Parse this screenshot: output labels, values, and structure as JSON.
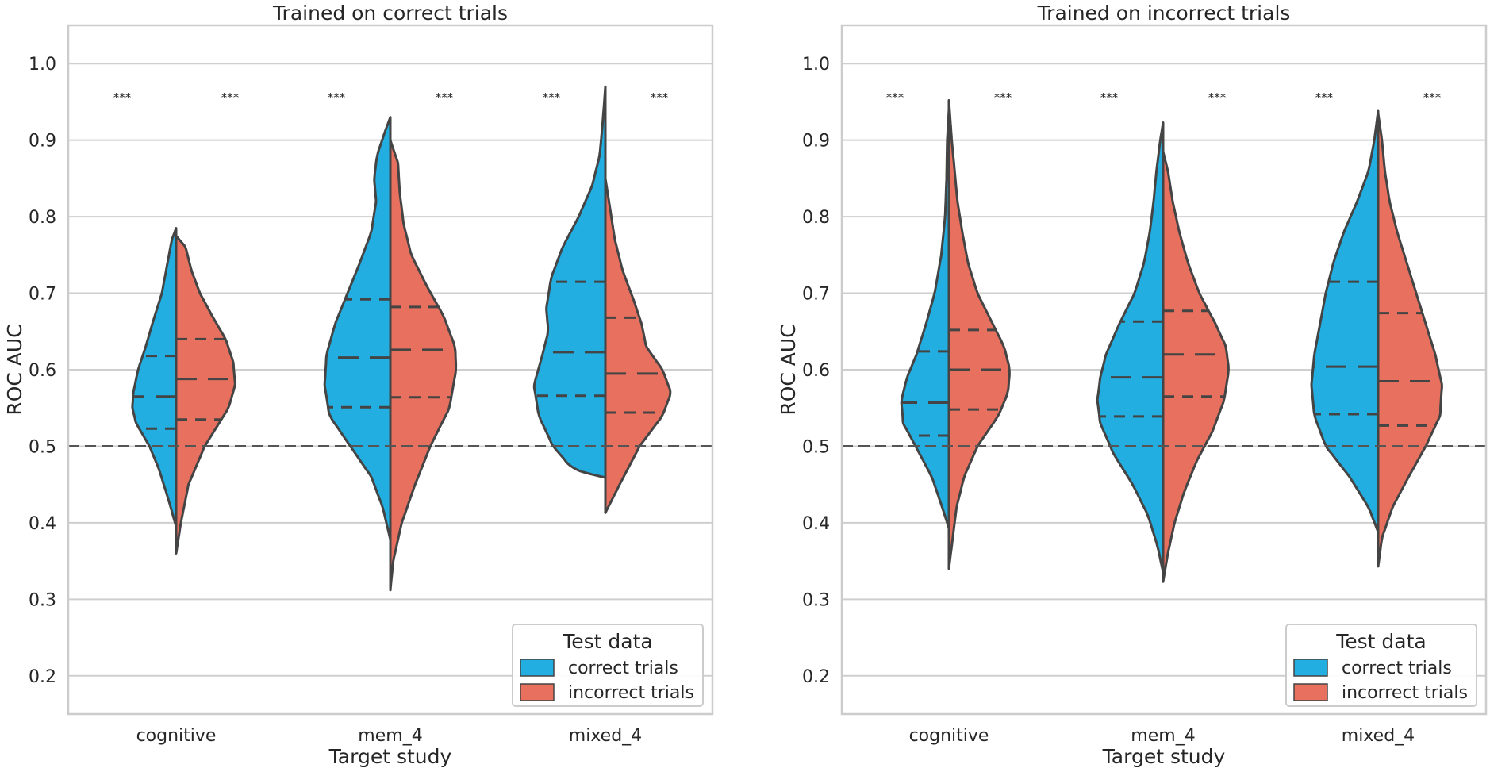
{
  "colors": {
    "correct": "#22aee0",
    "incorrect": "#e8705f",
    "outline": "#444444",
    "grid": "#cfcfcf",
    "reference": "#555555"
  },
  "chart_data": [
    {
      "type": "violin",
      "title": "Trained on correct trials",
      "xlabel": "Target study",
      "ylabel": "ROC AUC",
      "ylim": [
        0.15,
        1.05
      ],
      "yticks": [
        "0.2",
        "0.3",
        "0.4",
        "0.5",
        "0.6",
        "0.7",
        "0.8",
        "0.9",
        "1.0"
      ],
      "categories": [
        "cognitive",
        "mem_4",
        "mixed_4"
      ],
      "reference_line": 0.5,
      "grid": true,
      "legend": {
        "title": "Test data",
        "placement": "lower-right",
        "entries": [
          "correct trials",
          "incorrect trials"
        ]
      },
      "groups": [
        {
          "category": "cognitive",
          "correct": {
            "min": 0.395,
            "max": 0.785,
            "q1": 0.523,
            "median": 0.565,
            "q3": 0.618,
            "signif": "***",
            "shape": [
              [
                0.395,
                0.0
              ],
              [
                0.43,
                0.08
              ],
              [
                0.47,
                0.18
              ],
              [
                0.5,
                0.28
              ],
              [
                0.53,
                0.42
              ],
              [
                0.55,
                0.46
              ],
              [
                0.57,
                0.45
              ],
              [
                0.6,
                0.4
              ],
              [
                0.63,
                0.32
              ],
              [
                0.66,
                0.25
              ],
              [
                0.7,
                0.15
              ],
              [
                0.74,
                0.09
              ],
              [
                0.77,
                0.045
              ],
              [
                0.785,
                0.0
              ]
            ]
          },
          "incorrect": {
            "min": 0.36,
            "max": 0.775,
            "q1": 0.535,
            "median": 0.588,
            "q3": 0.64,
            "signif": "***",
            "shape": [
              [
                0.36,
                0.0
              ],
              [
                0.4,
                0.05
              ],
              [
                0.45,
                0.13
              ],
              [
                0.5,
                0.3
              ],
              [
                0.55,
                0.55
              ],
              [
                0.58,
                0.62
              ],
              [
                0.61,
                0.6
              ],
              [
                0.64,
                0.52
              ],
              [
                0.67,
                0.38
              ],
              [
                0.7,
                0.25
              ],
              [
                0.73,
                0.16
              ],
              [
                0.76,
                0.1
              ],
              [
                0.775,
                0.0
              ]
            ]
          }
        },
        {
          "category": "mem_4",
          "correct": {
            "min": 0.378,
            "max": 0.93,
            "q1": 0.551,
            "median": 0.616,
            "q3": 0.692,
            "signif": "***",
            "shape": [
              [
                0.378,
                0.0
              ],
              [
                0.42,
                0.08
              ],
              [
                0.46,
                0.2
              ],
              [
                0.5,
                0.42
              ],
              [
                0.54,
                0.64
              ],
              [
                0.58,
                0.69
              ],
              [
                0.62,
                0.67
              ],
              [
                0.66,
                0.58
              ],
              [
                0.7,
                0.45
              ],
              [
                0.74,
                0.32
              ],
              [
                0.78,
                0.2
              ],
              [
                0.82,
                0.15
              ],
              [
                0.85,
                0.17
              ],
              [
                0.88,
                0.14
              ],
              [
                0.91,
                0.06
              ],
              [
                0.93,
                0.0
              ]
            ]
          },
          "incorrect": {
            "min": 0.312,
            "max": 0.9,
            "q1": 0.564,
            "median": 0.626,
            "q3": 0.682,
            "signif": "***",
            "shape": [
              [
                0.312,
                0.0
              ],
              [
                0.35,
                0.03
              ],
              [
                0.4,
                0.12
              ],
              [
                0.45,
                0.26
              ],
              [
                0.5,
                0.42
              ],
              [
                0.55,
                0.62
              ],
              [
                0.6,
                0.69
              ],
              [
                0.63,
                0.68
              ],
              [
                0.67,
                0.56
              ],
              [
                0.71,
                0.38
              ],
              [
                0.75,
                0.22
              ],
              [
                0.79,
                0.14
              ],
              [
                0.83,
                0.1
              ],
              [
                0.87,
                0.08
              ],
              [
                0.9,
                0.0
              ]
            ]
          }
        },
        {
          "category": "mixed_4",
          "correct": {
            "min": 0.459,
            "max": 0.97,
            "q1": 0.566,
            "median": 0.623,
            "q3": 0.715,
            "signif": "***",
            "shape": [
              [
                0.459,
                0.0
              ],
              [
                0.47,
                0.34
              ],
              [
                0.5,
                0.55
              ],
              [
                0.54,
                0.7
              ],
              [
                0.58,
                0.75
              ],
              [
                0.62,
                0.66
              ],
              [
                0.65,
                0.6
              ],
              [
                0.68,
                0.62
              ],
              [
                0.72,
                0.57
              ],
              [
                0.76,
                0.45
              ],
              [
                0.8,
                0.28
              ],
              [
                0.84,
                0.14
              ],
              [
                0.88,
                0.06
              ],
              [
                0.92,
                0.03
              ],
              [
                0.97,
                0.0
              ]
            ]
          },
          "incorrect": {
            "min": 0.413,
            "max": 0.85,
            "q1": 0.544,
            "median": 0.595,
            "q3": 0.668,
            "signif": "***",
            "shape": [
              [
                0.413,
                0.0
              ],
              [
                0.45,
                0.15
              ],
              [
                0.5,
                0.36
              ],
              [
                0.54,
                0.6
              ],
              [
                0.57,
                0.69
              ],
              [
                0.6,
                0.6
              ],
              [
                0.63,
                0.43
              ],
              [
                0.66,
                0.38
              ],
              [
                0.69,
                0.3
              ],
              [
                0.73,
                0.18
              ],
              [
                0.77,
                0.1
              ],
              [
                0.81,
                0.05
              ],
              [
                0.85,
                0.0
              ]
            ]
          }
        }
      ]
    },
    {
      "type": "violin",
      "title": "Trained on incorrect trials",
      "xlabel": "Target study",
      "ylabel": "ROC AUC",
      "ylim": [
        0.15,
        1.05
      ],
      "yticks": [
        "0.2",
        "0.3",
        "0.4",
        "0.5",
        "0.6",
        "0.7",
        "0.8",
        "0.9",
        "1.0"
      ],
      "categories": [
        "cognitive",
        "mem_4",
        "mixed_4"
      ],
      "reference_line": 0.5,
      "grid": true,
      "legend": {
        "title": "Test data",
        "placement": "lower-right",
        "entries": [
          "correct trials",
          "incorrect trials"
        ]
      },
      "groups": [
        {
          "category": "cognitive",
          "correct": {
            "min": 0.393,
            "max": 0.94,
            "q1": 0.514,
            "median": 0.557,
            "q3": 0.624,
            "signif": "***",
            "shape": [
              [
                0.393,
                0.0
              ],
              [
                0.42,
                0.07
              ],
              [
                0.46,
                0.18
              ],
              [
                0.5,
                0.35
              ],
              [
                0.53,
                0.48
              ],
              [
                0.56,
                0.5
              ],
              [
                0.59,
                0.44
              ],
              [
                0.62,
                0.34
              ],
              [
                0.66,
                0.24
              ],
              [
                0.7,
                0.15
              ],
              [
                0.75,
                0.08
              ],
              [
                0.8,
                0.04
              ],
              [
                0.85,
                0.025
              ],
              [
                0.9,
                0.018
              ],
              [
                0.94,
                0.0
              ]
            ]
          },
          "incorrect": {
            "min": 0.34,
            "max": 0.952,
            "q1": 0.548,
            "median": 0.6,
            "q3": 0.652,
            "signif": "***",
            "shape": [
              [
                0.34,
                0.0
              ],
              [
                0.38,
                0.04
              ],
              [
                0.42,
                0.08
              ],
              [
                0.46,
                0.16
              ],
              [
                0.5,
                0.3
              ],
              [
                0.54,
                0.52
              ],
              [
                0.57,
                0.62
              ],
              [
                0.6,
                0.64
              ],
              [
                0.63,
                0.58
              ],
              [
                0.66,
                0.46
              ],
              [
                0.7,
                0.3
              ],
              [
                0.74,
                0.2
              ],
              [
                0.78,
                0.14
              ],
              [
                0.82,
                0.09
              ],
              [
                0.86,
                0.06
              ],
              [
                0.9,
                0.03
              ],
              [
                0.952,
                0.0
              ]
            ]
          }
        },
        {
          "category": "mem_4",
          "correct": {
            "min": 0.335,
            "max": 0.923,
            "q1": 0.539,
            "median": 0.59,
            "q3": 0.663,
            "signif": "***",
            "shape": [
              [
                0.335,
                0.0
              ],
              [
                0.37,
                0.06
              ],
              [
                0.41,
                0.16
              ],
              [
                0.45,
                0.32
              ],
              [
                0.49,
                0.52
              ],
              [
                0.53,
                0.66
              ],
              [
                0.56,
                0.69
              ],
              [
                0.59,
                0.66
              ],
              [
                0.62,
                0.6
              ],
              [
                0.66,
                0.46
              ],
              [
                0.7,
                0.3
              ],
              [
                0.74,
                0.2
              ],
              [
                0.78,
                0.14
              ],
              [
                0.82,
                0.1
              ],
              [
                0.86,
                0.07
              ],
              [
                0.9,
                0.03
              ],
              [
                0.923,
                0.0
              ]
            ]
          },
          "incorrect": {
            "min": 0.323,
            "max": 0.885,
            "q1": 0.565,
            "median": 0.62,
            "q3": 0.677,
            "signif": "***",
            "shape": [
              [
                0.323,
                0.0
              ],
              [
                0.36,
                0.05
              ],
              [
                0.4,
                0.12
              ],
              [
                0.44,
                0.22
              ],
              [
                0.48,
                0.35
              ],
              [
                0.52,
                0.52
              ],
              [
                0.56,
                0.64
              ],
              [
                0.6,
                0.69
              ],
              [
                0.63,
                0.66
              ],
              [
                0.66,
                0.55
              ],
              [
                0.7,
                0.38
              ],
              [
                0.74,
                0.26
              ],
              [
                0.78,
                0.17
              ],
              [
                0.82,
                0.1
              ],
              [
                0.86,
                0.05
              ],
              [
                0.885,
                0.0
              ]
            ]
          }
        },
        {
          "category": "mixed_4",
          "correct": {
            "min": 0.388,
            "max": 0.938,
            "q1": 0.542,
            "median": 0.604,
            "q3": 0.715,
            "signif": "***",
            "shape": [
              [
                0.388,
                0.0
              ],
              [
                0.42,
                0.1
              ],
              [
                0.46,
                0.3
              ],
              [
                0.5,
                0.55
              ],
              [
                0.54,
                0.67
              ],
              [
                0.58,
                0.7
              ],
              [
                0.62,
                0.67
              ],
              [
                0.66,
                0.61
              ],
              [
                0.7,
                0.55
              ],
              [
                0.74,
                0.47
              ],
              [
                0.78,
                0.36
              ],
              [
                0.82,
                0.22
              ],
              [
                0.86,
                0.1
              ],
              [
                0.9,
                0.04
              ],
              [
                0.938,
                0.0
              ]
            ]
          },
          "incorrect": {
            "min": 0.343,
            "max": 0.935,
            "q1": 0.527,
            "median": 0.585,
            "q3": 0.674,
            "signif": "***",
            "shape": [
              [
                0.343,
                0.0
              ],
              [
                0.38,
                0.04
              ],
              [
                0.42,
                0.15
              ],
              [
                0.46,
                0.32
              ],
              [
                0.5,
                0.5
              ],
              [
                0.54,
                0.65
              ],
              [
                0.58,
                0.67
              ],
              [
                0.62,
                0.6
              ],
              [
                0.66,
                0.5
              ],
              [
                0.7,
                0.4
              ],
              [
                0.74,
                0.3
              ],
              [
                0.78,
                0.2
              ],
              [
                0.82,
                0.12
              ],
              [
                0.86,
                0.07
              ],
              [
                0.9,
                0.04
              ],
              [
                0.935,
                0.0
              ]
            ]
          }
        }
      ]
    }
  ]
}
